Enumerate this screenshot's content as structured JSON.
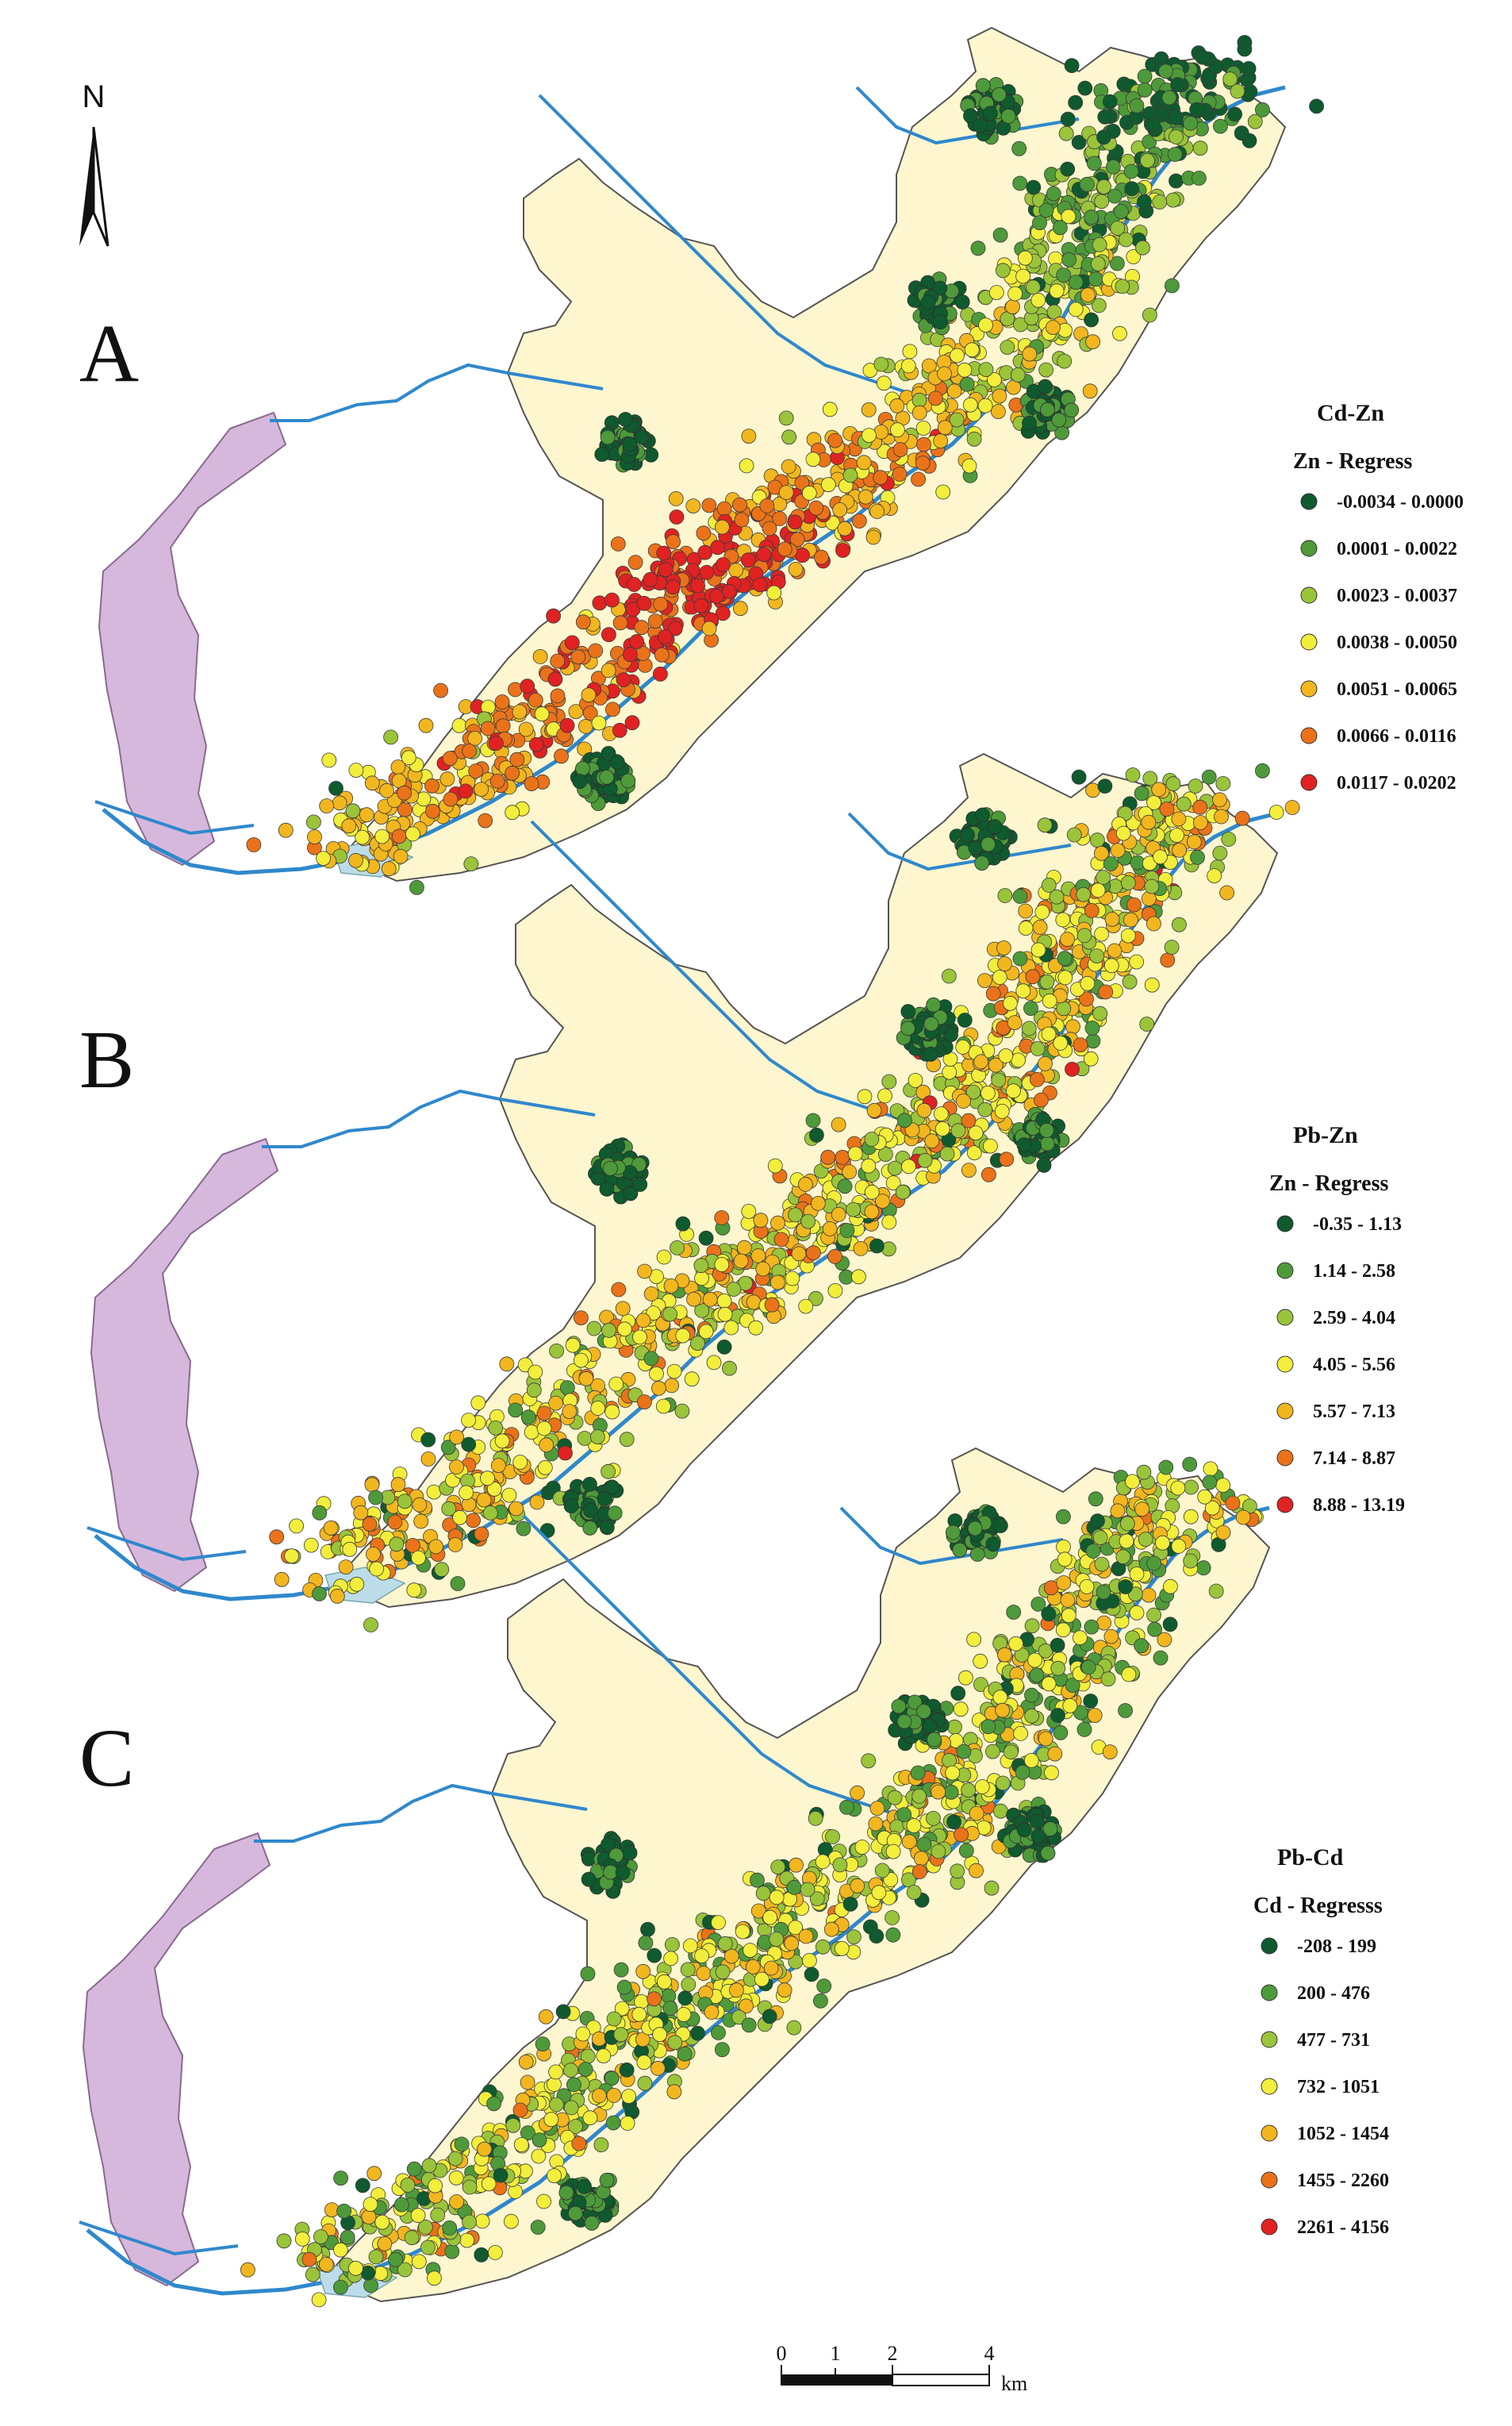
{
  "north_arrow": {
    "label": "N"
  },
  "colors": {
    "boundary_fill": "#fdf6cf",
    "boundary_stroke": "#555555",
    "river": "#2f88cc",
    "lake": "#d7b8dd",
    "reservoir": "#bcdcea",
    "classes": [
      "#0f5a2e",
      "#4e9a3a",
      "#9ac43a",
      "#f2ee3b",
      "#f2b61f",
      "#ea731a",
      "#e02222"
    ]
  },
  "panels": [
    {
      "letter": "A",
      "legend": {
        "title": "Cd-Zn",
        "subtitle": "Zn - Regress",
        "classes": [
          "-0.0034 - 0.0000",
          "0.0001 - 0.0022",
          "0.0023 - 0.0037",
          "0.0038 - 0.0050",
          "0.0051 - 0.0065",
          "0.0066 - 0.0116",
          "0.0117 - 0.0202"
        ]
      }
    },
    {
      "letter": "B",
      "legend": {
        "title": "Pb-Zn",
        "subtitle": "Zn - Regress",
        "classes": [
          "-0.35 - 1.13",
          "1.14 - 2.58",
          "2.59 - 4.04",
          "4.05 - 5.56",
          "5.57 - 7.13",
          "7.14 - 8.87",
          "8.88 - 13.19"
        ]
      }
    },
    {
      "letter": "C",
      "legend": {
        "title": "Pb-Cd",
        "subtitle": "Cd - Regresss",
        "classes": [
          "-208 - 199",
          "200 - 476",
          "477 - 731",
          "732 - 1051",
          "1052 - 1454",
          "1455 - 2260",
          "2261 - 4156"
        ]
      }
    }
  ],
  "scale_bar": {
    "ticks": [
      "0",
      "1",
      "2",
      "4"
    ],
    "unit": "km"
  }
}
